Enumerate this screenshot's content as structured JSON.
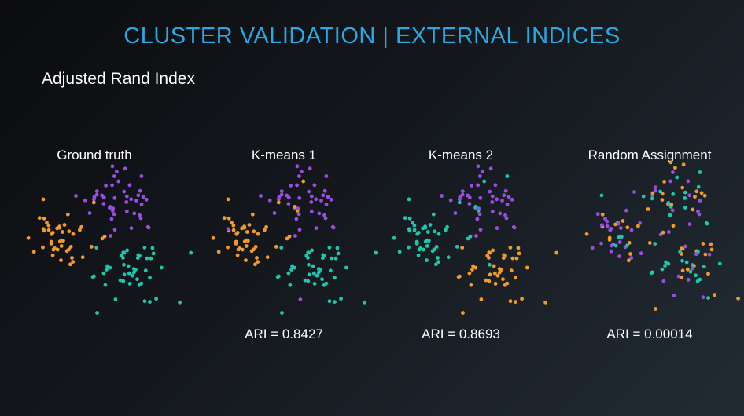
{
  "title": "CLUSTER VALIDATION | EXTERNAL INDICES",
  "subtitle": "Adjusted Rand Index",
  "colors": {
    "purple": "#9b4de3",
    "orange": "#f29b2c",
    "teal": "#1ec6aa",
    "title": "#29a9e1"
  },
  "chart_data": [
    {
      "type": "scatter",
      "title": "Ground truth",
      "annotation": "",
      "mix": [
        [
          1,
          0,
          0
        ],
        [
          0,
          1,
          0
        ],
        [
          0,
          0,
          1
        ]
      ]
    },
    {
      "type": "scatter",
      "title": "K-means 1",
      "annotation": "ARI = 0.8427",
      "mix": [
        [
          0.92,
          0.08,
          0
        ],
        [
          0.04,
          0.96,
          0
        ],
        [
          0.03,
          0,
          0.97
        ]
      ]
    },
    {
      "type": "scatter",
      "title": "K-means 2",
      "annotation": "ARI = 0.8693",
      "mix": [
        [
          0.9,
          0,
          0.1
        ],
        [
          0,
          0,
          1
        ],
        [
          0,
          0.94,
          0.06
        ]
      ]
    },
    {
      "type": "scatter",
      "title": "Random Assignment",
      "annotation": "ARI = 0.00014",
      "mix": [
        [
          0.34,
          0.33,
          0.33
        ],
        [
          0.33,
          0.34,
          0.33
        ],
        [
          0.33,
          0.33,
          0.34
        ]
      ]
    }
  ]
}
